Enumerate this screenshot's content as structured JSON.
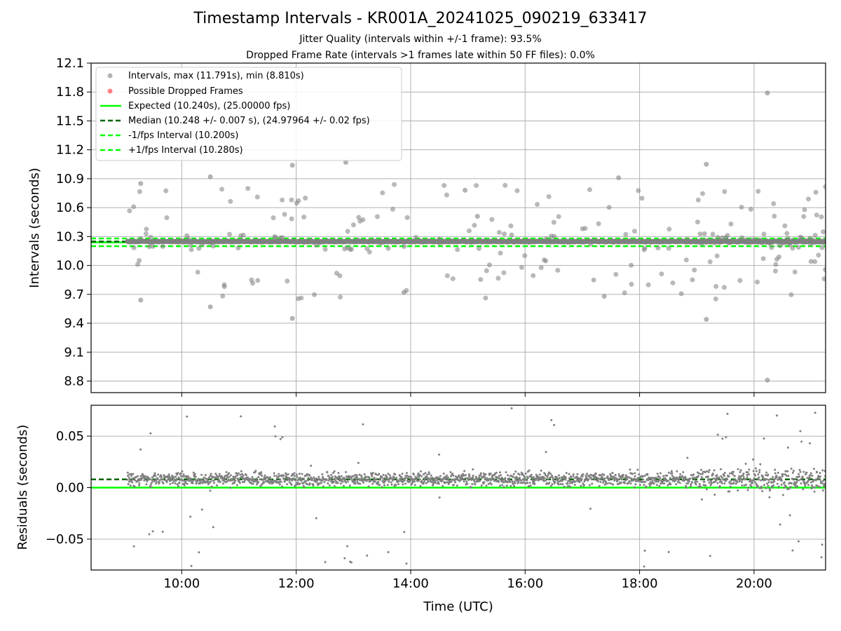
{
  "title": "Timestamp Intervals - KR001A_20241025_090219_633417",
  "subtitle_1": "Jitter Quality (intervals within +/-1 frame): 93.5%",
  "subtitle_2": "Dropped Frame Rate (intervals >1 frames late within 50 FF files): 0.0%",
  "colors": {
    "points": "#808080",
    "dropped": "#ff4d4d",
    "expected": "#00ff00",
    "median": "#006400",
    "grid": "#b0b0b0"
  },
  "chart_data": [
    {
      "type": "scatter",
      "ylabel": "Intervals (seconds)",
      "xlim": [
        "08:25",
        "21:15"
      ],
      "ylim": [
        8.68,
        12.1
      ],
      "yticks": [
        "12.1",
        "11.8",
        "11.5",
        "11.2",
        "10.9",
        "10.6",
        "10.3",
        "10.0",
        "9.7",
        "9.4",
        "9.1",
        "8.8"
      ],
      "xticks": [
        "10:00",
        "12:00",
        "14:00",
        "16:00",
        "18:00",
        "20:00"
      ],
      "grid": true,
      "legend_position": "top-left",
      "legend": [
        "Intervals, max (11.791s), min (8.810s)",
        "Possible Dropped Frames",
        "Expected (10.240s), (25.00000 fps)",
        "Median (10.248 +/- 0.007 s), (24.97964 +/- 0.02 fps)",
        "-1/fps Interval (10.200s)",
        "+1/fps Interval (10.280s)"
      ],
      "expected": 10.24,
      "median": 10.248,
      "minus_one_fps": 10.2,
      "plus_one_fps": 10.28,
      "data_start": "09:03",
      "data_end": "21:15",
      "notable_points": [
        {
          "x": "20:14",
          "y": 11.79
        },
        {
          "x": "20:14",
          "y": 8.81
        },
        {
          "x": "11:56",
          "y": 11.04
        },
        {
          "x": "12:52",
          "y": 11.07
        },
        {
          "x": "19:10",
          "y": 11.05
        },
        {
          "x": "11:56",
          "y": 9.45
        },
        {
          "x": "19:10",
          "y": 9.44
        },
        {
          "x": "10:30",
          "y": 10.92
        },
        {
          "x": "17:38",
          "y": 10.91
        },
        {
          "x": "9:17",
          "y": 10.85
        },
        {
          "x": "9:17",
          "y": 9.64
        },
        {
          "x": "10:30",
          "y": 9.57
        },
        {
          "x": "13:53",
          "y": 9.72
        },
        {
          "x": "17:23",
          "y": 9.68
        },
        {
          "x": "15:10",
          "y": 10.51
        },
        {
          "x": "14:57",
          "y": 10.78
        }
      ]
    },
    {
      "type": "scatter",
      "xlabel": "Time (UTC)",
      "ylabel": "Residuals (seconds)",
      "ylim": [
        -0.08,
        0.08
      ],
      "yticks": [
        "0.05",
        "0.00",
        "−0.05"
      ],
      "xticks": [
        "10:00",
        "12:00",
        "14:00",
        "16:00",
        "18:00",
        "20:00"
      ],
      "grid": true,
      "median_residual": 0.008,
      "expected_residual": 0.0,
      "typical_spread": [
        -0.01,
        0.025
      ]
    }
  ]
}
